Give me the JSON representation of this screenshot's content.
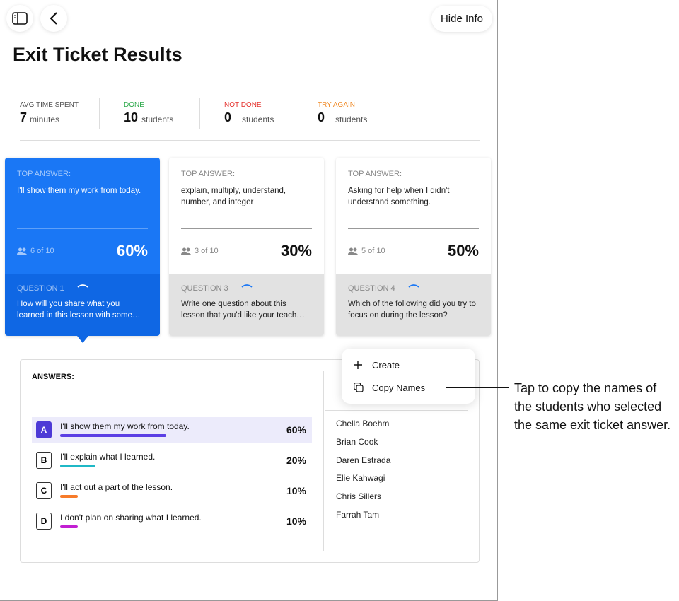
{
  "header": {
    "hide_info": "Hide Info",
    "title": "Exit Ticket Results"
  },
  "stats": [
    {
      "label": "AVG TIME SPENT",
      "value": "7",
      "unit": "minutes"
    },
    {
      "label": "DONE",
      "value": "10",
      "unit": "students"
    },
    {
      "label": "NOT DONE",
      "value": "0",
      "unit": "students"
    },
    {
      "label": "TRY AGAIN",
      "value": "0",
      "unit": "students"
    }
  ],
  "cards": [
    {
      "top_label": "TOP ANSWER:",
      "answer": "I'll show them my work from today.",
      "count": "6 of 10",
      "percent": "60%",
      "question_label": "QUESTION 1",
      "question": "How will you share what you learned in this lesson with some…"
    },
    {
      "top_label": "TOP ANSWER:",
      "answer": "explain, multiply, understand, number, and integer",
      "count": "3 of 10",
      "percent": "30%",
      "question_label": "QUESTION 3",
      "question": "Write one question about this lesson that you'd like your teach…"
    },
    {
      "top_label": "TOP ANSWER:",
      "answer": "Asking for help when I didn't understand something.",
      "count": "5 of 10",
      "percent": "50%",
      "question_label": "QUESTION 4",
      "question": "Which of the following did you try to focus on during the lesson?"
    }
  ],
  "answers": {
    "title": "ANSWERS:",
    "options": [
      {
        "letter": "A",
        "text": "I'll show them my work from today.",
        "percent": 60,
        "percent_label": "60%"
      },
      {
        "letter": "B",
        "text": "I'll explain what I learned.",
        "percent": 20,
        "percent_label": "20%"
      },
      {
        "letter": "C",
        "text": "I'll act out a part of the lesson.",
        "percent": 10,
        "percent_label": "10%"
      },
      {
        "letter": "D",
        "text": "I don't plan on sharing what I learned.",
        "percent": 10,
        "percent_label": "10%"
      }
    ]
  },
  "students": [
    "Chella Boehm",
    "Brian Cook",
    "Daren Estrada",
    "Elie Kahwagi",
    "Chris Sillers",
    "Farrah Tam"
  ],
  "menu": {
    "create": "Create",
    "copy_names": "Copy Names"
  },
  "callout": "Tap to copy the names of the students who selected the same exit ticket answer."
}
